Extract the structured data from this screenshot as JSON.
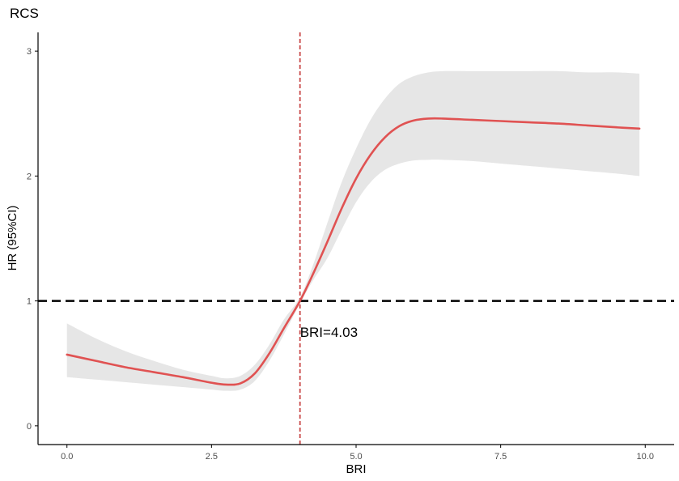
{
  "chart_data": {
    "type": "line",
    "title": "RCS",
    "xlabel": "BRI",
    "ylabel": "HR (95%CI)",
    "xlim": [
      -0.5,
      10.5
    ],
    "ylim": [
      -0.15,
      3.15
    ],
    "x_ticks": [
      0,
      2.5,
      5,
      7.5,
      10
    ],
    "x_tick_labels": [
      "0.0",
      "2.5",
      "5.0",
      "7.5",
      "10.0"
    ],
    "y_ticks": [
      0,
      1,
      2,
      3
    ],
    "y_tick_labels": [
      "0",
      "1",
      "2",
      "3"
    ],
    "grid": false,
    "series": [
      {
        "color": "#e05252",
        "x": [
          0.0,
          0.5,
          1.0,
          1.5,
          2.0,
          2.5,
          2.75,
          3.0,
          3.25,
          3.5,
          3.75,
          4.03,
          4.25,
          4.5,
          4.75,
          5.0,
          5.25,
          5.5,
          5.75,
          6.0,
          6.25,
          6.5,
          7.0,
          7.5,
          8.0,
          8.5,
          9.0,
          9.5,
          9.9
        ],
        "y": [
          0.57,
          0.52,
          0.47,
          0.43,
          0.39,
          0.345,
          0.33,
          0.34,
          0.42,
          0.58,
          0.78,
          1.0,
          1.21,
          1.47,
          1.74,
          1.98,
          2.17,
          2.31,
          2.4,
          2.445,
          2.46,
          2.46,
          2.45,
          2.44,
          2.43,
          2.42,
          2.405,
          2.39,
          2.38
        ],
        "lower": [
          0.39,
          0.37,
          0.35,
          0.33,
          0.31,
          0.29,
          0.28,
          0.29,
          0.36,
          0.52,
          0.73,
          0.98,
          1.16,
          1.34,
          1.57,
          1.79,
          1.95,
          2.05,
          2.1,
          2.125,
          2.13,
          2.13,
          2.12,
          2.1,
          2.08,
          2.06,
          2.04,
          2.02,
          2.0
        ],
        "upper": [
          0.82,
          0.7,
          0.6,
          0.52,
          0.45,
          0.4,
          0.38,
          0.4,
          0.49,
          0.65,
          0.85,
          1.03,
          1.28,
          1.62,
          1.95,
          2.22,
          2.45,
          2.62,
          2.74,
          2.8,
          2.83,
          2.84,
          2.84,
          2.84,
          2.84,
          2.84,
          2.83,
          2.83,
          2.82
        ]
      }
    ],
    "band_color": "#e6e6e6",
    "reference_lines": {
      "horizontal": {
        "y": 1,
        "style": "dashed",
        "color": "#000000"
      },
      "vertical": {
        "x": 4.03,
        "style": "dashed",
        "color": "#c94a4a"
      }
    },
    "annotation": {
      "text": "BRI=4.03",
      "x": 4.03,
      "y": 0.75
    }
  }
}
